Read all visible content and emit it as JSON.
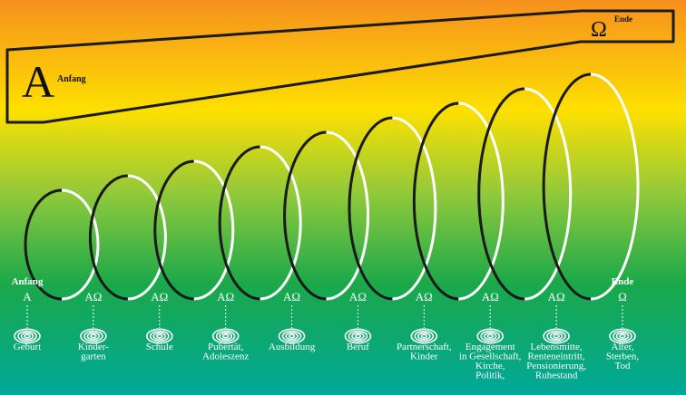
{
  "header": {
    "start_letter": "A",
    "start_label": "Anfang",
    "end_letter": "Ω",
    "end_label": "Ende"
  },
  "stages": [
    {
      "heading": "Anfang",
      "symbol": "A",
      "lines": [
        "Geburt"
      ]
    },
    {
      "symbol": "AΩ",
      "lines": [
        "Kinder-",
        "garten"
      ]
    },
    {
      "symbol": "AΩ",
      "lines": [
        "Schule"
      ]
    },
    {
      "symbol": "AΩ",
      "lines": [
        "Pubertät,",
        "Adoleszenz"
      ]
    },
    {
      "symbol": "AΩ",
      "lines": [
        "Ausbildung"
      ]
    },
    {
      "symbol": "AΩ",
      "lines": [
        "Beruf"
      ]
    },
    {
      "symbol": "AΩ",
      "lines": [
        "Partnerschaft,",
        "Kinder"
      ]
    },
    {
      "symbol": "AΩ",
      "lines": [
        "Engagement",
        "in Gesellschaft,",
        "Kirche,",
        "Politik,"
      ]
    },
    {
      "symbol": "AΩ",
      "lines": [
        "Lebensmitte,",
        "Renteneintritt,",
        "Pensionierung,",
        "Ruhestand"
      ]
    },
    {
      "heading": "Ende",
      "symbol": "Ω",
      "lines": [
        "Alter,",
        "Sterben,",
        "Tod"
      ]
    }
  ]
}
